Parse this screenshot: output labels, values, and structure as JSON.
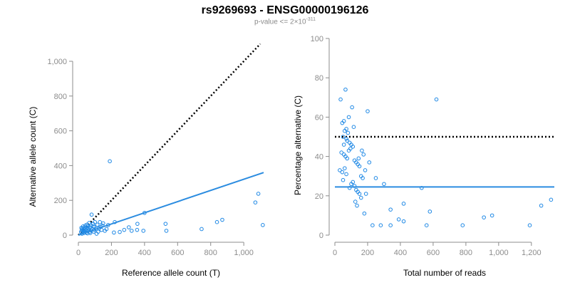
{
  "header": {
    "title": "rs9269693 - ENSG00000196126",
    "subtitle_base": "p-value <= 2×10",
    "subtitle_exp": "-311"
  },
  "colors": {
    "points": "#1e88e5",
    "fit_line": "#2b8ce0",
    "reference_line": "#000000",
    "axis": "#8c8c8c",
    "tick_label": "#8c8c8c",
    "axis_label": "#000000"
  },
  "chart_data": [
    {
      "type": "scatter",
      "xlabel": "Reference allele count (T)",
      "ylabel": "Alternative allele count (C)",
      "xlim": [
        0,
        1120
      ],
      "ylim": [
        0,
        1000
      ],
      "xticks": [
        0,
        200,
        400,
        600,
        800,
        1000
      ],
      "xtick_labels": [
        "0",
        "200",
        "400",
        "600",
        "800",
        "1,000"
      ],
      "yticks": [
        0,
        200,
        400,
        600,
        800,
        1000
      ],
      "ytick_labels": [
        "0",
        "200",
        "400",
        "600",
        "800",
        "1,000"
      ],
      "reference_line": {
        "style": "dotted",
        "points": [
          [
            0,
            0
          ],
          [
            1100,
            1100
          ]
        ]
      },
      "fit_line": {
        "style": "solid",
        "points": [
          [
            0,
            0
          ],
          [
            1120,
            360
          ]
        ]
      },
      "points": [
        [
          190,
          425
        ],
        [
          1088,
          238
        ],
        [
          1070,
          188
        ],
        [
          1115,
          58
        ],
        [
          870,
          88
        ],
        [
          838,
          75
        ],
        [
          745,
          35
        ],
        [
          527,
          65
        ],
        [
          532,
          25
        ],
        [
          400,
          128
        ],
        [
          393,
          25
        ],
        [
          357,
          65
        ],
        [
          355,
          30
        ],
        [
          322,
          25
        ],
        [
          305,
          45
        ],
        [
          277,
          30
        ],
        [
          250,
          18
        ],
        [
          220,
          75
        ],
        [
          215,
          15
        ],
        [
          180,
          58
        ],
        [
          170,
          35
        ],
        [
          160,
          25
        ],
        [
          150,
          68
        ],
        [
          145,
          55
        ],
        [
          140,
          30
        ],
        [
          130,
          75
        ],
        [
          125,
          40
        ],
        [
          120,
          20
        ],
        [
          115,
          60
        ],
        [
          108,
          35
        ],
        [
          100,
          75
        ],
        [
          97,
          48
        ],
        [
          93,
          20
        ],
        [
          88,
          65
        ],
        [
          85,
          35
        ],
        [
          80,
          118
        ],
        [
          78,
          55
        ],
        [
          75,
          28
        ],
        [
          70,
          45
        ],
        [
          68,
          18
        ],
        [
          65,
          70
        ],
        [
          60,
          38
        ],
        [
          58,
          52
        ],
        [
          55,
          25
        ],
        [
          52,
          60
        ],
        [
          50,
          42
        ],
        [
          48,
          15
        ],
        [
          45,
          30
        ],
        [
          42,
          55
        ],
        [
          40,
          20
        ],
        [
          38,
          45
        ],
        [
          35,
          12
        ],
        [
          33,
          35
        ],
        [
          30,
          25
        ],
        [
          28,
          50
        ],
        [
          26,
          15
        ],
        [
          24,
          38
        ],
        [
          22,
          8
        ],
        [
          20,
          28
        ],
        [
          18,
          42
        ],
        [
          16,
          18
        ],
        [
          55,
          10
        ],
        [
          62,
          30
        ],
        [
          72,
          12
        ],
        [
          90,
          50
        ],
        [
          110,
          8
        ],
        [
          135,
          48
        ],
        [
          95,
          30
        ]
      ]
    },
    {
      "type": "scatter",
      "xlabel": "Total number of reads",
      "ylabel": "Percentage alternative (C)",
      "xlim": [
        0,
        1340
      ],
      "ylim": [
        0,
        100
      ],
      "xticks": [
        0,
        200,
        400,
        600,
        800,
        1000,
        1200
      ],
      "xtick_labels": [
        "0",
        "200",
        "400",
        "600",
        "800",
        "1,000",
        "1,200"
      ],
      "yticks": [
        0,
        20,
        40,
        60,
        80,
        100
      ],
      "ytick_labels": [
        "0",
        "20",
        "40",
        "60",
        "80",
        "100"
      ],
      "reference_line": {
        "style": "dotted",
        "points": [
          [
            0,
            50
          ],
          [
            1340,
            50
          ]
        ]
      },
      "fit_line": {
        "style": "solid",
        "points": [
          [
            0,
            24.5
          ],
          [
            1340,
            24.5
          ]
        ]
      },
      "points": [
        [
          65,
          74
        ],
        [
          35,
          69
        ],
        [
          55,
          58
        ],
        [
          45,
          57
        ],
        [
          70,
          54
        ],
        [
          80,
          52
        ],
        [
          60,
          53
        ],
        [
          50,
          50
        ],
        [
          75,
          48
        ],
        [
          90,
          47
        ],
        [
          100,
          46
        ],
        [
          110,
          45
        ],
        [
          95,
          44
        ],
        [
          85,
          43
        ],
        [
          40,
          42
        ],
        [
          55,
          41
        ],
        [
          65,
          40
        ],
        [
          75,
          39
        ],
        [
          120,
          38
        ],
        [
          130,
          37
        ],
        [
          140,
          36
        ],
        [
          150,
          35
        ],
        [
          60,
          34
        ],
        [
          30,
          33
        ],
        [
          45,
          32
        ],
        [
          70,
          31
        ],
        [
          160,
          30
        ],
        [
          170,
          29
        ],
        [
          50,
          28
        ],
        [
          110,
          27
        ],
        [
          100,
          26
        ],
        [
          120,
          25
        ],
        [
          90,
          24
        ],
        [
          130,
          23
        ],
        [
          140,
          22
        ],
        [
          150,
          21
        ],
        [
          125,
          17
        ],
        [
          135,
          15
        ],
        [
          180,
          11
        ],
        [
          160,
          19
        ],
        [
          200,
          63
        ],
        [
          210,
          37
        ],
        [
          250,
          29
        ],
        [
          300,
          26
        ],
        [
          230,
          5
        ],
        [
          280,
          5
        ],
        [
          340,
          13
        ],
        [
          340,
          5
        ],
        [
          390,
          8
        ],
        [
          420,
          7
        ],
        [
          420,
          16
        ],
        [
          530,
          24
        ],
        [
          560,
          5
        ],
        [
          580,
          12
        ],
        [
          620,
          69
        ],
        [
          780,
          5
        ],
        [
          910,
          9
        ],
        [
          960,
          10
        ],
        [
          1190,
          5
        ],
        [
          1260,
          15
        ],
        [
          1320,
          18
        ],
        [
          105,
          65
        ],
        [
          115,
          55
        ],
        [
          85,
          60
        ],
        [
          70,
          49
        ],
        [
          55,
          46
        ],
        [
          145,
          39
        ],
        [
          165,
          43
        ],
        [
          175,
          41
        ],
        [
          185,
          33
        ],
        [
          190,
          21
        ]
      ]
    }
  ]
}
